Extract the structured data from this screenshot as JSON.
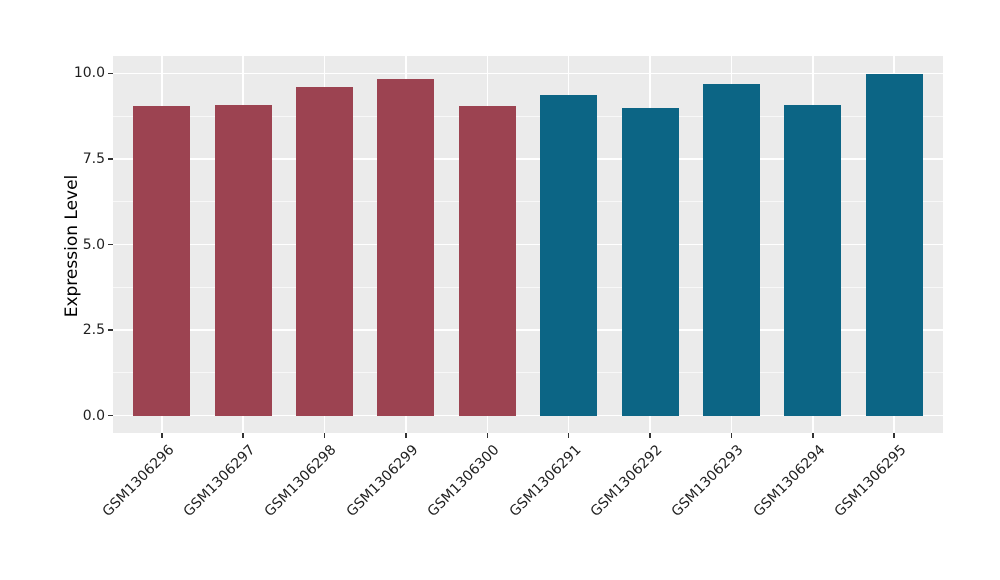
{
  "figure": {
    "background_color": "#FFFFFF",
    "panel_background_color": "#EBEBEB",
    "grid_color": "#FFFFFF",
    "tick_color": "#333333",
    "text_color": "#1f1f1f"
  },
  "chart_data": {
    "type": "bar",
    "title": "",
    "xlabel": "",
    "ylabel": "Expression Level",
    "categories": [
      "GSM1306296",
      "GSM1306297",
      "GSM1306298",
      "GSM1306299",
      "GSM1306300",
      "GSM1306291",
      "GSM1306292",
      "GSM1306293",
      "GSM1306294",
      "GSM1306295"
    ],
    "values": [
      9.04,
      9.07,
      9.6,
      9.82,
      9.04,
      9.38,
      9.0,
      9.68,
      9.06,
      9.97
    ],
    "bar_colors": [
      "#9C4351",
      "#9C4351",
      "#9C4351",
      "#9C4351",
      "#9C4351",
      "#0C6585",
      "#0C6585",
      "#0C6585",
      "#0C6585",
      "#0C6585"
    ],
    "group_colors": {
      "maroon_group": "#9C4351",
      "teal_group": "#0C6585"
    },
    "ylim": [
      0,
      10
    ],
    "yticks": [
      0.0,
      2.5,
      5.0,
      7.5,
      10.0
    ],
    "ytick_labels": [
      "0.0",
      "2.5",
      "5.0",
      "7.5",
      "10.0"
    ],
    "yticks_minor": [
      1.25,
      3.75,
      6.25,
      8.75
    ],
    "xtick_rotation_deg": 45,
    "grid": true,
    "legend_position": "none"
  }
}
